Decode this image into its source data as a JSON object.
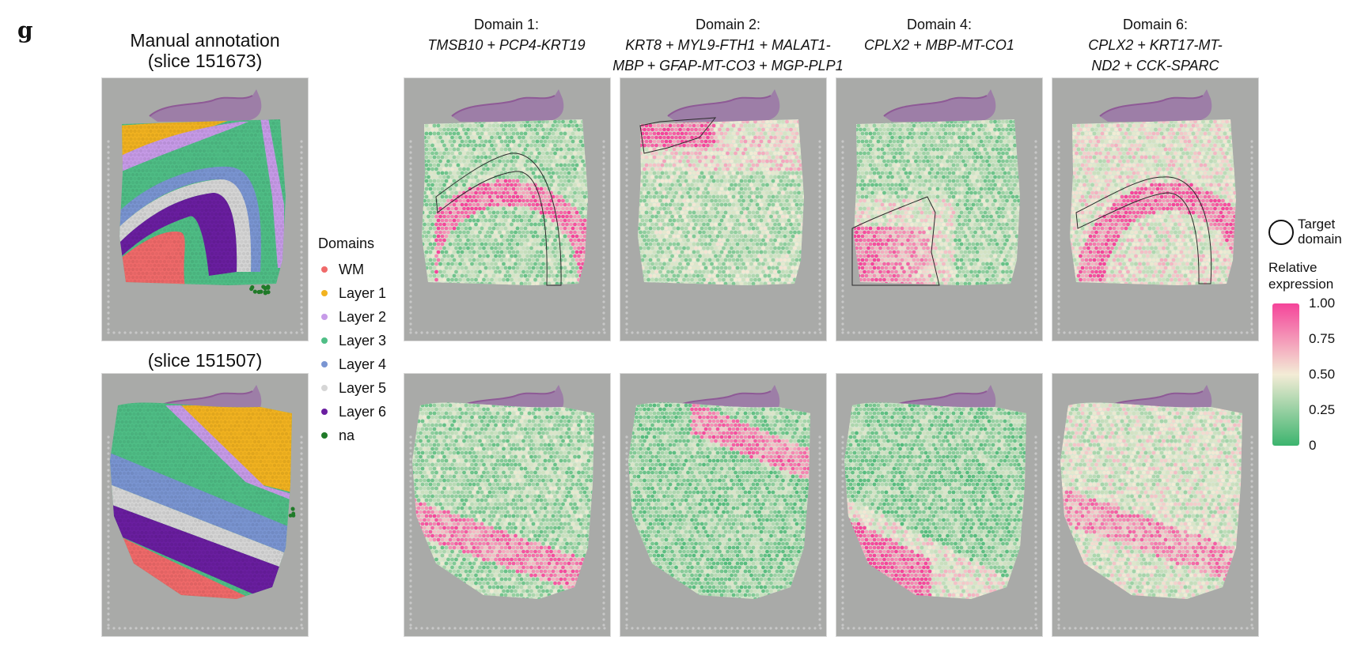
{
  "panel_letter": "g",
  "left_title_line1": "Manual annotation",
  "left_title_line2": "(slice 151673)",
  "left_bottom_title": "(slice 151507)",
  "columns": [
    {
      "title": "Domain 1:",
      "genes": "TMSB10 + PCP4-KRT19"
    },
    {
      "title": "Domain 2:",
      "genes": "KRT8 + MYL9-FTH1 + MALAT1-\nMBP + GFAP-MT-CO3 + MGP-PLP1"
    },
    {
      "title": "Domain 4:",
      "genes": "CPLX2 + MBP-MT-CO1"
    },
    {
      "title": "Domain 6:",
      "genes": "CPLX2 + KRT17-MT-\nND2 + CCK-SPARC"
    }
  ],
  "legend": {
    "title": "Domains",
    "items": [
      {
        "label": "WM",
        "color": "#f06a6a"
      },
      {
        "label": "Layer 1",
        "color": "#f2b320"
      },
      {
        "label": "Layer 2",
        "color": "#c79be8"
      },
      {
        "label": "Layer 3",
        "color": "#4fbe86"
      },
      {
        "label": "Layer 4",
        "color": "#7a95d2"
      },
      {
        "label": "Layer 5",
        "color": "#d6d6d6"
      },
      {
        "label": "Layer 6",
        "color": "#6a1ea0"
      },
      {
        "label": "na",
        "color": "#1f7a28"
      }
    ]
  },
  "target_domain_label_line1": "Target",
  "target_domain_label_line2": "domain",
  "colorbar": {
    "title_line1": "Relative",
    "title_line2": "expression",
    "ticks": [
      "1.00",
      "0.75",
      "0.50",
      "0.25",
      "0"
    ],
    "color_high": "#f5449a",
    "color_mid": "#f3ecd6",
    "color_low": "#3cb46e"
  },
  "colors": {
    "slide_bg": "#a9aaa8",
    "tissue_edge": "#8e5a96",
    "outline": "#2b2b2b"
  }
}
